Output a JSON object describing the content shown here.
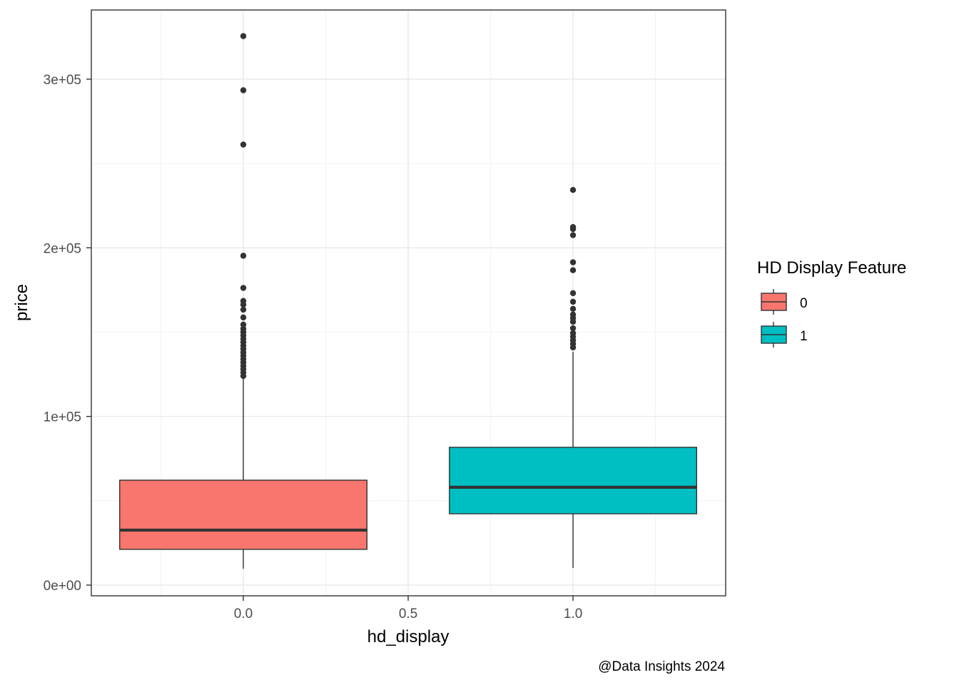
{
  "chart_data": {
    "type": "boxplot",
    "title": "",
    "xlabel": "hd_display",
    "ylabel": "price",
    "caption": "@Data Insights 2024",
    "xlim": [
      -0.461,
      1.463
    ],
    "ylim": [
      -6350,
      341000
    ],
    "x_ticks": [
      {
        "value": 0.0,
        "label": "0.0"
      },
      {
        "value": 0.5,
        "label": "0.5"
      },
      {
        "value": 1.0,
        "label": "1.0"
      }
    ],
    "x_minor_ticks": [
      -0.25,
      0.25,
      0.75,
      1.25
    ],
    "y_ticks": [
      {
        "value": 0,
        "label": "0e+00"
      },
      {
        "value": 100000,
        "label": "1e+05"
      },
      {
        "value": 200000,
        "label": "2e+05"
      },
      {
        "value": 300000,
        "label": "3e+05"
      }
    ],
    "y_minor_ticks": [
      50000,
      150000,
      250000
    ],
    "grid": true,
    "legend": {
      "title": "HD Display Feature",
      "position": "right",
      "entries": [
        {
          "label": "0",
          "color": "#F8766D"
        },
        {
          "label": "1",
          "color": "#00BFC4"
        }
      ]
    },
    "series": [
      {
        "name": "0",
        "x": 0.0,
        "box_width": 0.75,
        "color": "#F8766D",
        "whisker_low": 9700,
        "q1": 21200,
        "median": 32600,
        "q3": 62200,
        "whisker_high": 122700,
        "outliers": [
          325500,
          293400,
          261200,
          195300,
          176200,
          168500,
          166300,
          163300,
          158700,
          154500,
          152000,
          150000,
          148000,
          146000,
          144000,
          142000,
          140000,
          138000,
          136000,
          134000,
          132000,
          130000,
          128000,
          126000,
          124000
        ]
      },
      {
        "name": "1",
        "x": 1.0,
        "box_width": 0.75,
        "color": "#00BFC4",
        "whisker_low": 10200,
        "q1": 42300,
        "median": 58000,
        "q3": 81700,
        "whisker_high": 138400,
        "outliers": [
          234300,
          212300,
          211100,
          207500,
          191400,
          186700,
          173100,
          168000,
          163800,
          160400,
          158300,
          156100,
          152300,
          149400,
          147300,
          145100,
          143000,
          140900
        ]
      }
    ]
  },
  "style": {
    "line_color": "#333333",
    "grid_major": "#EBEBEB",
    "grid_minor": "#F2F2F2",
    "panel_border": "#333333"
  }
}
